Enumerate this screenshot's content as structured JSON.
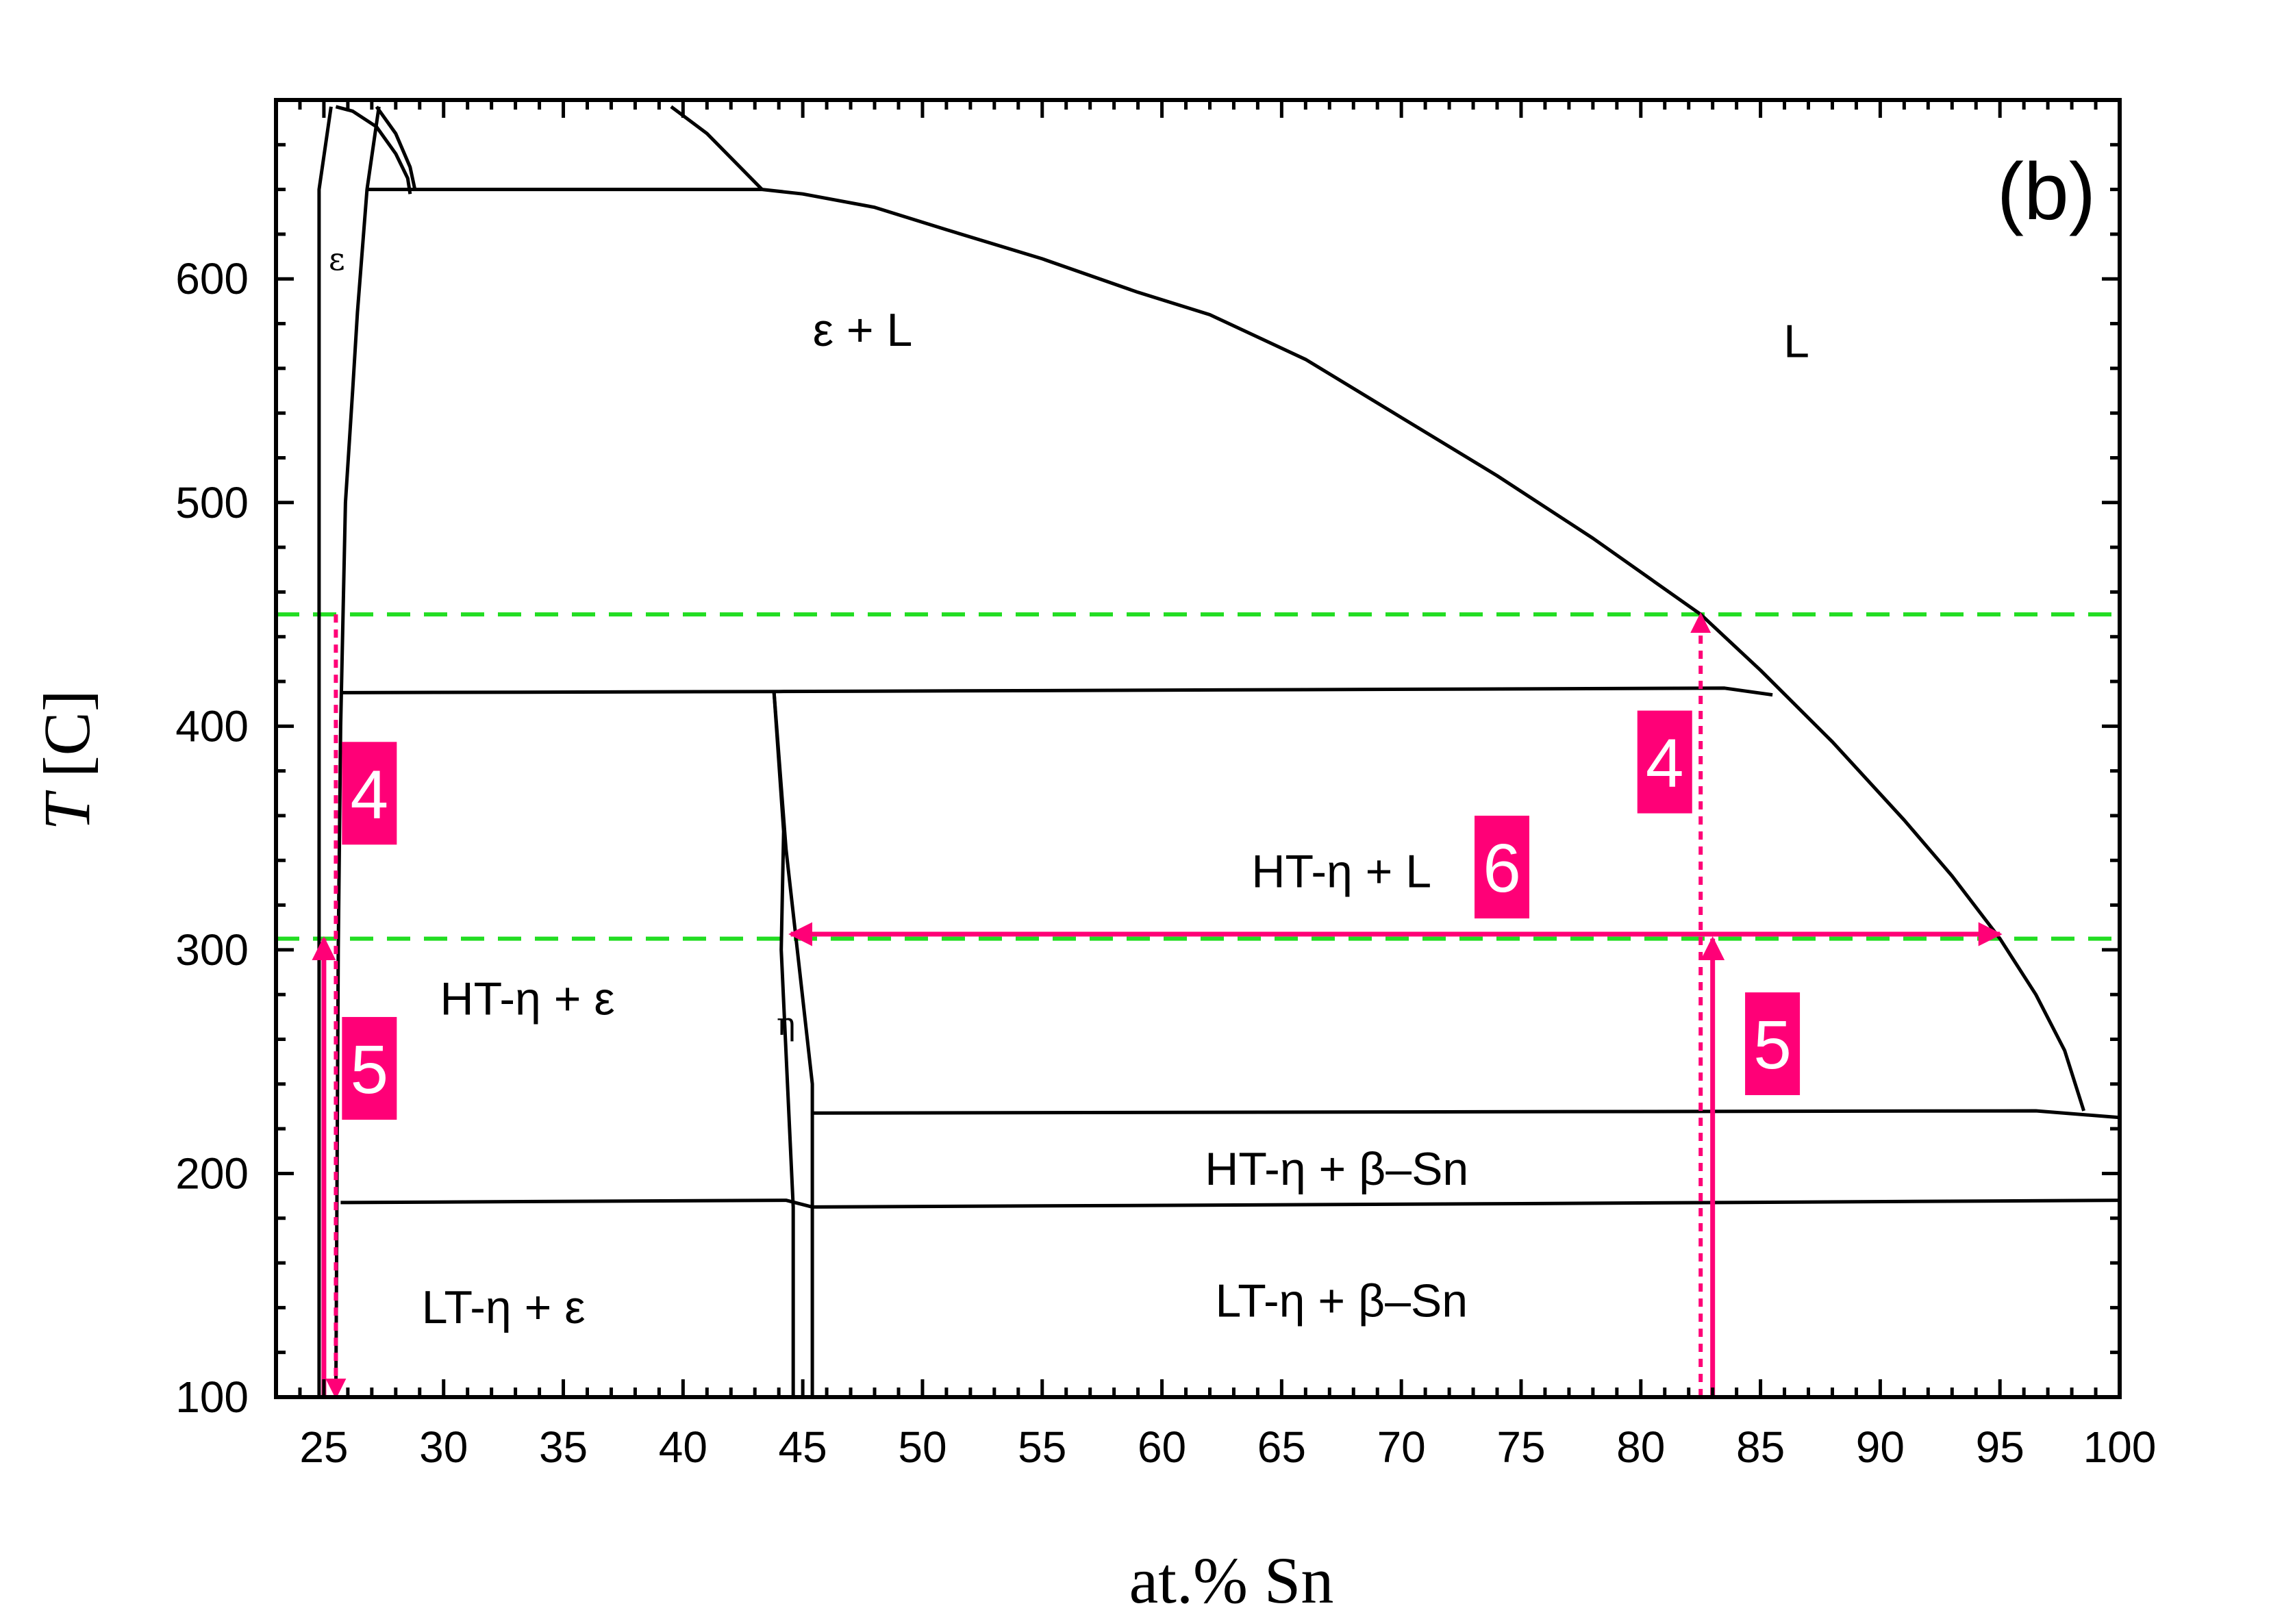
{
  "chart_data": {
    "type": "line",
    "title": "",
    "panel_label": "(b)",
    "xlabel": "at.% Sn",
    "ylabel_italic": "T",
    "ylabel_rest": " [C]",
    "xlim": [
      23,
      100
    ],
    "ylim": [
      100,
      680
    ],
    "xticks": [
      25,
      30,
      35,
      40,
      45,
      50,
      55,
      60,
      65,
      70,
      75,
      80,
      85,
      90,
      95,
      100
    ],
    "yticks": [
      100,
      200,
      300,
      400,
      500,
      600
    ],
    "grid": false,
    "colors": {
      "boundary": "#000000",
      "guide": "#ff0077",
      "isotherm": "#22dd22",
      "badge": "#ff0077"
    },
    "phase_boundaries": [
      {
        "name": "epsilon-left-solvus",
        "points": [
          [
            24.8,
            100
          ],
          [
            24.8,
            640
          ],
          [
            25.3,
            677
          ]
        ]
      },
      {
        "name": "epsilon-right-solvus",
        "points": [
          [
            25.5,
            100
          ],
          [
            25.6,
            300
          ],
          [
            25.7,
            400
          ],
          [
            25.9,
            500
          ],
          [
            26.2,
            550
          ],
          [
            26.4,
            585
          ],
          [
            26.8,
            640
          ],
          [
            27.3,
            677
          ]
        ]
      },
      {
        "name": "epsilon-liquidus-dome",
        "points": [
          [
            25.5,
            677
          ],
          [
            26.2,
            675
          ],
          [
            27.2,
            668
          ],
          [
            28.0,
            656
          ],
          [
            28.5,
            645
          ],
          [
            28.6,
            638
          ]
        ]
      },
      {
        "name": "upper-phase-boundary",
        "points": [
          [
            27.2,
            677
          ],
          [
            28.0,
            665
          ],
          [
            28.6,
            650
          ],
          [
            28.8,
            640
          ]
        ]
      },
      {
        "name": "peritectic-upper-line",
        "points": [
          [
            39.5,
            677
          ],
          [
            41.0,
            665
          ],
          [
            43.3,
            640
          ]
        ]
      },
      {
        "name": "peritectic-640",
        "points": [
          [
            26.8,
            640
          ],
          [
            43.3,
            640
          ]
        ]
      },
      {
        "name": "liquidus",
        "points": [
          [
            43.3,
            640
          ],
          [
            45,
            638
          ],
          [
            48,
            632
          ],
          [
            51,
            622
          ],
          [
            55,
            609
          ],
          [
            59,
            594
          ],
          [
            62,
            584
          ],
          [
            66,
            564
          ],
          [
            70,
            538
          ],
          [
            74,
            512
          ],
          [
            78,
            484
          ],
          [
            82.5,
            450
          ],
          [
            85,
            425
          ],
          [
            88,
            393
          ],
          [
            91,
            358
          ],
          [
            93,
            333
          ],
          [
            95,
            305
          ],
          [
            96.5,
            280
          ],
          [
            97.7,
            255
          ],
          [
            98.5,
            228
          ]
        ]
      },
      {
        "name": "peritectic-415",
        "points": [
          [
            25.7,
            415
          ],
          [
            44,
            415.5
          ],
          [
            83.5,
            417
          ],
          [
            85.5,
            414
          ]
        ]
      },
      {
        "name": "eta-left-boundary",
        "points": [
          [
            43.8,
            415
          ],
          [
            44.2,
            353
          ],
          [
            44.1,
            300
          ],
          [
            44.6,
            185
          ],
          [
            44.6,
            100
          ]
        ]
      },
      {
        "name": "eta-right-boundary",
        "points": [
          [
            43.8,
            415
          ],
          [
            44.3,
            345
          ],
          [
            45.4,
            240
          ],
          [
            45.4,
            226
          ],
          [
            45.4,
            100
          ]
        ]
      },
      {
        "name": "eutectic-227",
        "points": [
          [
            45.4,
            227
          ],
          [
            70,
            227.5
          ],
          [
            96.5,
            228
          ],
          [
            100,
            225
          ]
        ]
      },
      {
        "name": "eutectoid-186",
        "points": [
          [
            25.7,
            187
          ],
          [
            44.3,
            188
          ],
          [
            45.4,
            185
          ],
          [
            75,
            186.5
          ],
          [
            100,
            188
          ]
        ]
      }
    ],
    "isotherms": [
      {
        "name": "isotherm-upper",
        "y": 450
      },
      {
        "name": "isotherm-lower",
        "y": 305
      }
    ],
    "guides": [
      {
        "name": "guide-25.5-dotted",
        "style": "dotted",
        "x": 25.5,
        "y": [
          100,
          450
        ],
        "arrow": "end"
      },
      {
        "name": "guide-25-solid",
        "style": "solid",
        "x": 25,
        "y": [
          100,
          305
        ],
        "arrow": "end"
      },
      {
        "name": "guide-82.5-dotted",
        "style": "dotted",
        "x": 82.5,
        "y": [
          100,
          450
        ],
        "arrow": "start"
      },
      {
        "name": "guide-83-solid",
        "style": "solid",
        "x": 83,
        "y": [
          100,
          305
        ],
        "arrow": "end"
      },
      {
        "name": "guide-horizontal-arrow",
        "style": "solid",
        "x": [
          44.5,
          95
        ],
        "y": 307,
        "arrow": "both"
      }
    ],
    "region_labels": [
      {
        "name": "label-eps-L",
        "text": "ε  + L",
        "x": 47.5,
        "y": 570,
        "anchor": "middle"
      },
      {
        "name": "label-L",
        "text": "L",
        "x": 86.5,
        "y": 565,
        "anchor": "middle"
      },
      {
        "name": "label-eps",
        "text": "ε",
        "x": 25.2,
        "y": 604,
        "anchor": "start",
        "small": true
      },
      {
        "name": "label-eta-small",
        "text": "η",
        "x": 44.3,
        "y": 262,
        "anchor": "middle",
        "small": true
      },
      {
        "name": "label-HTeta-L",
        "text": "HT-η  + L",
        "x": 67.5,
        "y": 328,
        "anchor": "middle"
      },
      {
        "name": "label-HTeta-eps",
        "text": "HT-η  + ε",
        "x": 33.5,
        "y": 271,
        "anchor": "middle"
      },
      {
        "name": "label-HTeta-bSn",
        "text": "HT-η  + β–Sn",
        "x": 67.3,
        "y": 195,
        "anchor": "middle"
      },
      {
        "name": "label-LTeta-bSn",
        "text": "LT-η  + β–Sn",
        "x": 67.5,
        "y": 136,
        "anchor": "middle"
      },
      {
        "name": "label-LTeta-eps",
        "text": "LT-η  + ε",
        "x": 32.5,
        "y": 133,
        "anchor": "middle"
      }
    ],
    "badges": [
      {
        "name": "badge-4-left",
        "text": "4",
        "x": 26.9,
        "y": 370
      },
      {
        "name": "badge-5-left",
        "text": "5",
        "x": 26.9,
        "y": 247
      },
      {
        "name": "badge-4-right",
        "text": "4",
        "x": 81,
        "y": 384
      },
      {
        "name": "badge-6",
        "text": "6",
        "x": 74.2,
        "y": 337
      },
      {
        "name": "badge-5-right",
        "text": "5",
        "x": 85.5,
        "y": 258
      }
    ]
  }
}
